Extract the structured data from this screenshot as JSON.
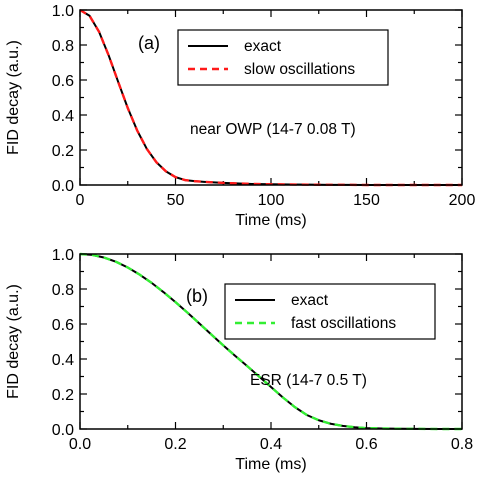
{
  "chart_data": [
    {
      "type": "line",
      "panel_label": "(a)",
      "annotation": "near OWP (14-7 0.08 T)",
      "xlabel": "Time (ms)",
      "ylabel": "FID decay (a.u.)",
      "xlim": [
        0,
        200
      ],
      "ylim": [
        0,
        1.0
      ],
      "x_ticks": [
        "0",
        "50",
        "100",
        "150",
        "200"
      ],
      "y_ticks": [
        "0.0",
        "0.2",
        "0.4",
        "0.6",
        "0.8",
        "1.0"
      ],
      "grid": false,
      "legend_position": "top-right",
      "x": [
        0,
        5,
        10,
        15,
        20,
        25,
        30,
        35,
        40,
        45,
        50,
        55,
        60,
        65,
        70,
        75,
        80,
        85,
        90,
        95,
        100,
        110,
        120,
        130,
        140,
        150,
        160,
        180,
        200
      ],
      "series": [
        {
          "name": "exact",
          "color": "#000000",
          "style": "solid",
          "values": [
            1.0,
            0.967,
            0.875,
            0.741,
            0.589,
            0.44,
            0.31,
            0.206,
            0.13,
            0.078,
            0.045,
            0.028,
            0.022,
            0.018,
            0.015,
            0.012,
            0.01,
            0.008,
            0.006,
            0.005,
            0.004,
            0.003,
            0.002,
            0.001,
            0.001,
            0.0,
            0.0,
            0.0,
            0.0
          ]
        },
        {
          "name": "slow oscillations",
          "color": "#ff1a1a",
          "style": "dashed",
          "values": [
            1.0,
            0.967,
            0.875,
            0.741,
            0.589,
            0.44,
            0.31,
            0.206,
            0.13,
            0.078,
            0.045,
            0.028,
            0.022,
            0.018,
            0.015,
            0.012,
            0.01,
            0.008,
            0.006,
            0.005,
            0.004,
            0.003,
            0.002,
            0.001,
            0.001,
            0.0,
            0.0,
            0.0,
            0.0
          ]
        }
      ]
    },
    {
      "type": "line",
      "panel_label": "(b)",
      "annotation": "ESR (14-7 0.5 T)",
      "xlabel": "Time (ms)",
      "ylabel": "FID decay (a.u.)",
      "xlim": [
        0,
        0.8
      ],
      "ylim": [
        0,
        1.0
      ],
      "x_ticks": [
        "0.0",
        "0.2",
        "0.4",
        "0.6",
        "0.8"
      ],
      "y_ticks": [
        "0.0",
        "0.2",
        "0.4",
        "0.6",
        "0.8",
        "1.0"
      ],
      "grid": false,
      "legend_position": "top-right",
      "x": [
        0,
        0.025,
        0.05,
        0.075,
        0.1,
        0.125,
        0.15,
        0.175,
        0.2,
        0.225,
        0.25,
        0.275,
        0.3,
        0.325,
        0.35,
        0.375,
        0.4,
        0.425,
        0.45,
        0.475,
        0.5,
        0.525,
        0.55,
        0.575,
        0.6,
        0.65,
        0.7,
        0.75,
        0.8
      ],
      "series": [
        {
          "name": "exact",
          "color": "#000000",
          "style": "solid",
          "values": [
            1.0,
            0.995,
            0.98,
            0.956,
            0.923,
            0.882,
            0.835,
            0.782,
            0.725,
            0.665,
            0.603,
            0.54,
            0.478,
            0.418,
            0.36,
            0.3,
            0.24,
            0.18,
            0.125,
            0.08,
            0.05,
            0.03,
            0.018,
            0.01,
            0.005,
            0.002,
            0.001,
            0.0,
            0.0
          ]
        },
        {
          "name": "fast oscillations",
          "color": "#33ee33",
          "style": "dashed",
          "values": [
            1.0,
            0.995,
            0.98,
            0.956,
            0.923,
            0.882,
            0.835,
            0.782,
            0.725,
            0.665,
            0.603,
            0.54,
            0.478,
            0.418,
            0.36,
            0.3,
            0.24,
            0.18,
            0.125,
            0.08,
            0.05,
            0.03,
            0.018,
            0.01,
            0.005,
            0.002,
            0.001,
            0.0,
            0.0
          ]
        }
      ]
    }
  ]
}
